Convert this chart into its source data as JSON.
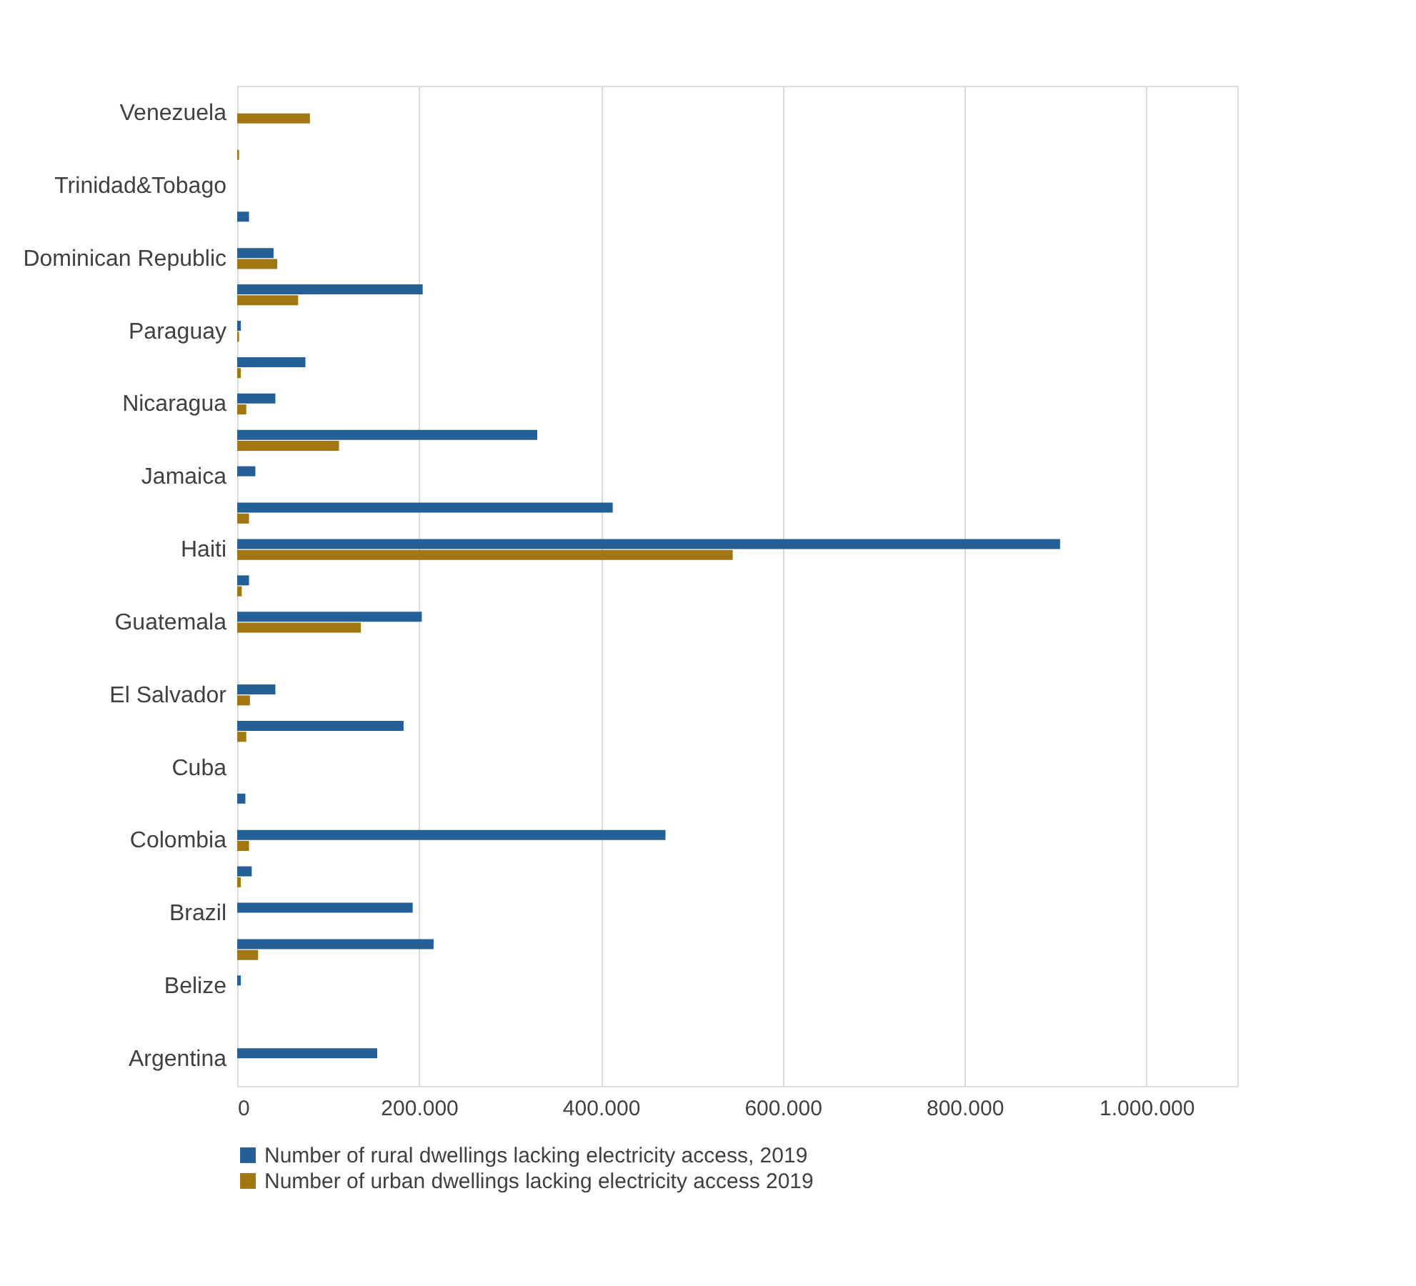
{
  "chart_data": {
    "type": "bar",
    "orientation": "horizontal",
    "categories": [
      "Venezuela",
      null,
      "Trinidad&Tobago",
      null,
      "Dominican Republic",
      null,
      "Paraguay",
      null,
      "Nicaragua",
      null,
      "Jamaica",
      null,
      "Haiti",
      null,
      "Guatemala",
      null,
      "El Salvador",
      null,
      "Cuba",
      null,
      "Colombia",
      null,
      "Brazil",
      null,
      "Belize",
      null,
      "Argentina"
    ],
    "series": [
      {
        "name": "Number of rural dwellings lacking electricity access, 2019",
        "color": "#245f95",
        "values": [
          null,
          null,
          null,
          13000,
          40000,
          204000,
          4000,
          75000,
          42000,
          330000,
          20000,
          413000,
          905000,
          13000,
          203000,
          null,
          42000,
          183000,
          null,
          9000,
          471000,
          16000,
          193000,
          216000,
          4000,
          null,
          154000
        ]
      },
      {
        "name": "Number of urban dwellings lacking electricity access  2019",
        "color": "#a07712",
        "values": [
          80000,
          2000,
          null,
          null,
          44000,
          67000,
          2000,
          4000,
          10000,
          112000,
          null,
          13000,
          545000,
          5000,
          136000,
          null,
          14000,
          10000,
          null,
          null,
          13000,
          4000,
          null,
          23000,
          null,
          null,
          null
        ]
      }
    ],
    "xlim": [
      0,
      1100000
    ],
    "xticks": [
      0,
      {
        "value": 200000,
        "label": "200.000"
      },
      {
        "value": 400000,
        "label": "400.000"
      },
      {
        "value": 600000,
        "label": "600.000"
      },
      {
        "value": 800000,
        "label": "800.000"
      },
      {
        "value": 1000000,
        "label": "1.000.000"
      }
    ],
    "grid": "x",
    "legend": "bottom"
  }
}
